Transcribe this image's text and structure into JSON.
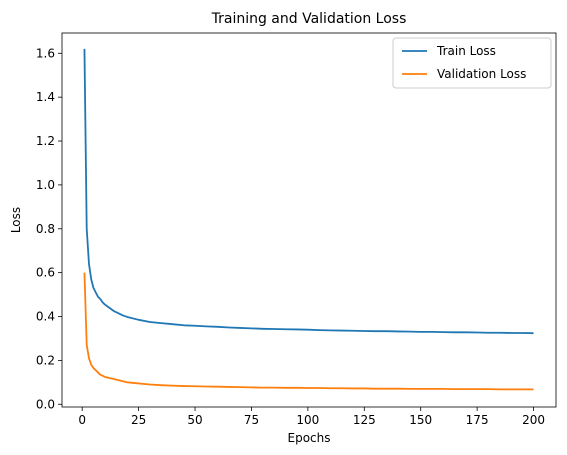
{
  "chart_data": {
    "type": "line",
    "title": "Training and Validation Loss",
    "xlabel": "Epochs",
    "ylabel": "Loss",
    "xlim": [
      -8.95,
      209.95
    ],
    "ylim": [
      -0.0125,
      1.6925
    ],
    "xticks": [
      0,
      25,
      50,
      75,
      100,
      125,
      150,
      175,
      200
    ],
    "xtick_labels": [
      "0",
      "25",
      "50",
      "75",
      "100",
      "125",
      "150",
      "175",
      "200"
    ],
    "yticks": [
      0.0,
      0.2,
      0.4,
      0.6,
      0.8,
      1.0,
      1.2,
      1.4,
      1.6
    ],
    "ytick_labels": [
      "0.0",
      "0.2",
      "0.4",
      "0.6",
      "0.8",
      "1.0",
      "1.2",
      "1.4",
      "1.6"
    ],
    "grid": false,
    "legend_position": "top-right",
    "x": [
      1,
      2,
      3,
      4,
      5,
      6,
      7,
      8,
      9,
      10,
      12,
      14,
      16,
      18,
      20,
      25,
      30,
      35,
      40,
      45,
      50,
      55,
      60,
      65,
      70,
      75,
      80,
      85,
      90,
      95,
      100,
      105,
      110,
      115,
      120,
      125,
      130,
      135,
      140,
      145,
      150,
      155,
      160,
      165,
      170,
      175,
      180,
      185,
      190,
      195,
      200
    ],
    "series": [
      {
        "name": "Train Loss",
        "color": "#1f77b4",
        "values": [
          1.62,
          0.8,
          0.64,
          0.57,
          0.53,
          0.51,
          0.49,
          0.48,
          0.465,
          0.455,
          0.44,
          0.425,
          0.415,
          0.405,
          0.398,
          0.385,
          0.375,
          0.37,
          0.365,
          0.36,
          0.358,
          0.355,
          0.353,
          0.35,
          0.348,
          0.346,
          0.344,
          0.343,
          0.342,
          0.341,
          0.34,
          0.338,
          0.337,
          0.336,
          0.335,
          0.334,
          0.333,
          0.333,
          0.332,
          0.331,
          0.33,
          0.33,
          0.329,
          0.328,
          0.328,
          0.327,
          0.326,
          0.326,
          0.325,
          0.325,
          0.324
        ]
      },
      {
        "name": "Validation Loss",
        "color": "#ff7f0e",
        "values": [
          0.6,
          0.27,
          0.21,
          0.18,
          0.165,
          0.155,
          0.145,
          0.135,
          0.13,
          0.125,
          0.12,
          0.115,
          0.11,
          0.105,
          0.1,
          0.095,
          0.09,
          0.087,
          0.085,
          0.083,
          0.082,
          0.081,
          0.08,
          0.079,
          0.078,
          0.077,
          0.076,
          0.076,
          0.075,
          0.075,
          0.074,
          0.074,
          0.073,
          0.073,
          0.072,
          0.072,
          0.071,
          0.071,
          0.071,
          0.07,
          0.07,
          0.07,
          0.07,
          0.069,
          0.069,
          0.069,
          0.069,
          0.068,
          0.068,
          0.068,
          0.068
        ]
      }
    ]
  }
}
